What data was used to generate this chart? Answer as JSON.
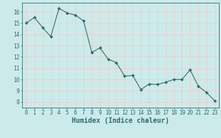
{
  "x": [
    0,
    1,
    2,
    3,
    4,
    5,
    6,
    7,
    8,
    9,
    10,
    11,
    12,
    13,
    14,
    15,
    16,
    17,
    18,
    19,
    20,
    21,
    22,
    23
  ],
  "y": [
    15.0,
    15.5,
    14.6,
    13.8,
    16.3,
    15.9,
    15.7,
    15.2,
    12.4,
    12.8,
    11.8,
    11.5,
    10.3,
    10.35,
    9.1,
    9.6,
    9.55,
    9.75,
    10.0,
    10.0,
    10.85,
    9.4,
    8.85,
    8.1
  ],
  "line_color": "#2e6b6b",
  "marker": "D",
  "marker_size": 2.0,
  "bg_color": "#cceaea",
  "grid_color_minor": "#f0c8c8",
  "grid_color_major": "#b8d8d8",
  "axis_label": "Humidex (Indice chaleur)",
  "xlim": [
    -0.5,
    23.5
  ],
  "ylim": [
    7.5,
    16.8
  ],
  "yticks": [
    8,
    9,
    10,
    11,
    12,
    13,
    14,
    15,
    16
  ],
  "xticks": [
    0,
    1,
    2,
    3,
    4,
    5,
    6,
    7,
    8,
    9,
    10,
    11,
    12,
    13,
    14,
    15,
    16,
    17,
    18,
    19,
    20,
    21,
    22,
    23
  ],
  "tick_label_size": 5.5,
  "axis_label_size": 7.0,
  "tick_color": "#2e6b6b",
  "label_color": "#2e6b6b",
  "line_width": 0.8
}
